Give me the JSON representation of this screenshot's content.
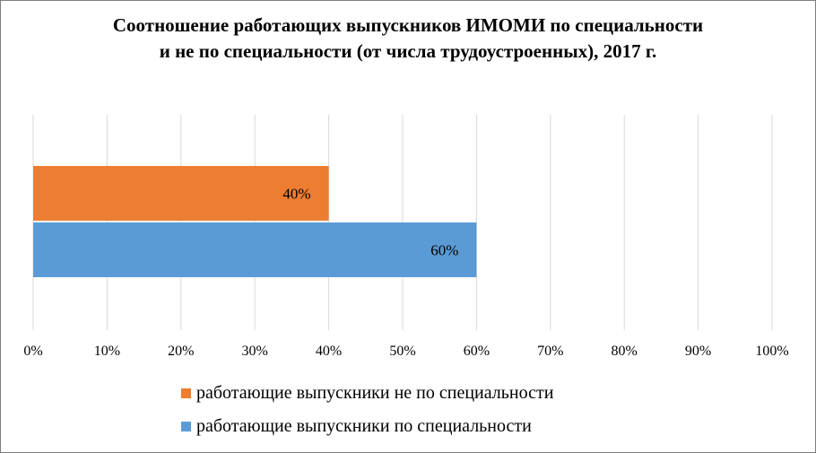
{
  "chart_data": {
    "type": "bar",
    "orientation": "horizontal",
    "title": "Соотношение работающих выпускников ИМОМИ по специальности и не по специальности (от числа трудоустроенных), 2017 г.",
    "xlim": [
      0,
      100
    ],
    "x_ticks": [
      "0%",
      "10%",
      "20%",
      "30%",
      "40%",
      "50%",
      "60%",
      "70%",
      "80%",
      "90%",
      "100%"
    ],
    "grid": true,
    "legend_position": "bottom",
    "series": [
      {
        "name": "работающие выпускники не по специальности",
        "value": 40,
        "label": "40%",
        "color": "#ed7d31"
      },
      {
        "name": "работающие выпускники по специальности",
        "value": 60,
        "label": "60%",
        "color": "#5b9bd5"
      }
    ]
  }
}
